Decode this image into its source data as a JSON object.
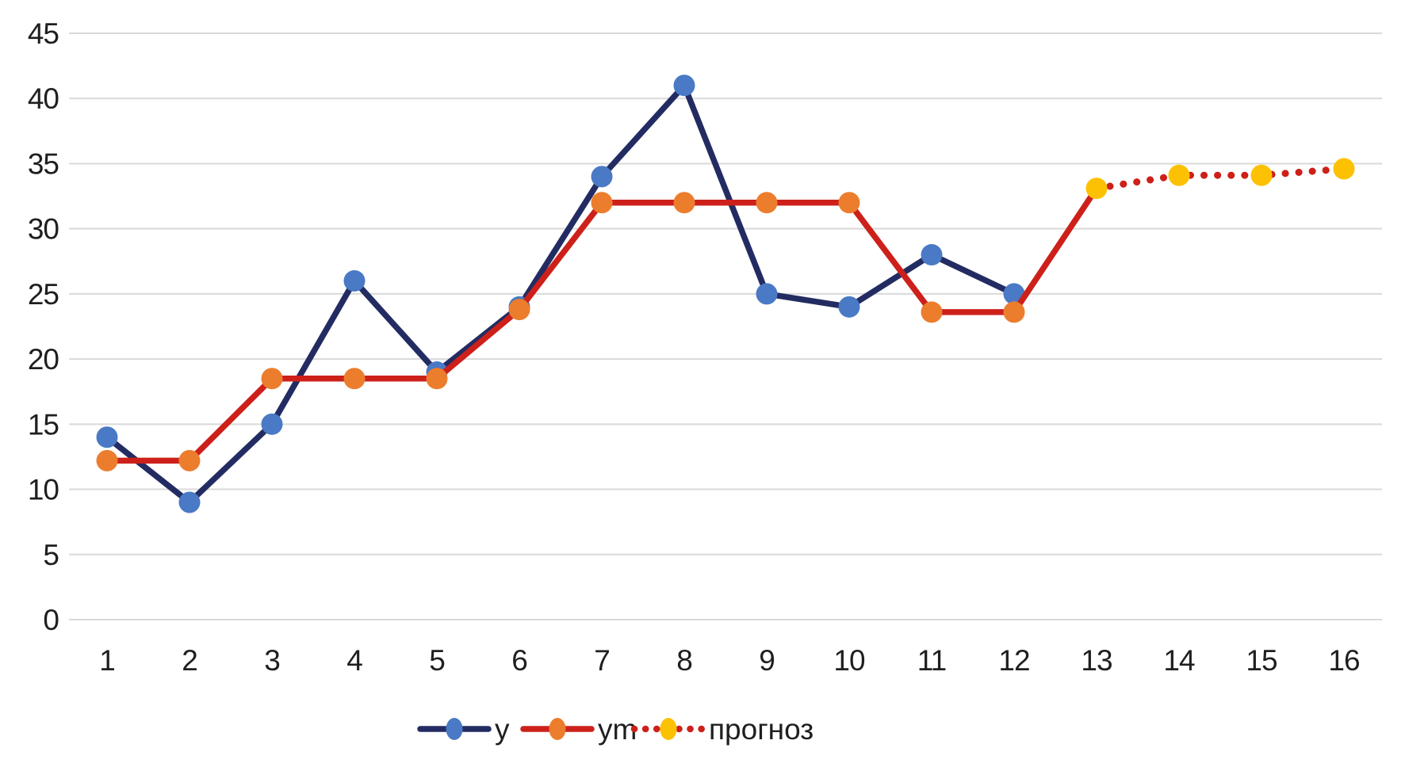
{
  "chart_data": {
    "type": "line",
    "title": "",
    "xlabel": "",
    "ylabel": "",
    "x_ticks": [
      1,
      2,
      3,
      4,
      5,
      6,
      7,
      8,
      9,
      10,
      11,
      12,
      13,
      14,
      15,
      16
    ],
    "y_ticks": [
      0,
      5,
      10,
      15,
      20,
      25,
      30,
      35,
      40,
      45
    ],
    "xlim": [
      1,
      16
    ],
    "ylim": [
      0,
      45
    ],
    "grid": "horizontal-only",
    "gridline_color": "#d9d9d9",
    "text_color": "#1f1f1f",
    "background_color": "#ffffff",
    "legend_position": "bottom-center",
    "series": [
      {
        "name": "y",
        "x_start": 1,
        "values": [
          14,
          9,
          15,
          26,
          19,
          24,
          34,
          41,
          25,
          24,
          28,
          25
        ],
        "line_color": "#232c62",
        "marker_color": "#4a79c5",
        "line_style": "solid",
        "marker": "circle",
        "last_point_marker": true
      },
      {
        "name": "ym",
        "x_start": 1,
        "values": [
          12.2,
          12.2,
          18.5,
          18.5,
          18.5,
          23.8,
          32,
          32,
          32,
          32,
          23.6,
          23.6,
          33.1
        ],
        "line_color": "#cd201a",
        "marker_color": "#ec7d2d",
        "line_style": "solid",
        "marker": "circle",
        "last_point_marker": false
      },
      {
        "name": "прогноз",
        "x_start": 13,
        "values": [
          33.1,
          34.1,
          34.1,
          34.6
        ],
        "line_color": "#cd201a",
        "marker_color": "#fdc104",
        "line_style": "dotted",
        "marker": "circle",
        "last_point_marker": true
      }
    ],
    "legend": [
      {
        "label": "y"
      },
      {
        "label": "ym"
      },
      {
        "label": "прогноз"
      }
    ]
  }
}
